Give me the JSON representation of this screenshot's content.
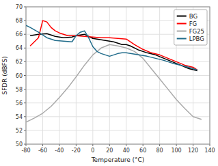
{
  "chart_data": {
    "type": "line",
    "xlabel": "Temperature (°C)",
    "ylabel": "SFDR (dBFS)",
    "xlim": [
      -80,
      140
    ],
    "ylim": [
      50,
      70
    ],
    "xticks": [
      -80,
      -60,
      -40,
      -20,
      0,
      20,
      40,
      60,
      80,
      100,
      120,
      140
    ],
    "yticks": [
      50,
      52,
      54,
      56,
      58,
      60,
      62,
      64,
      66,
      68,
      70
    ],
    "grid": true,
    "legend": "upper-right",
    "series": [
      {
        "name": "BG",
        "color": "#000000",
        "x": [
          -75,
          -65,
          -55,
          -45,
          -35,
          -25,
          -20,
          -15,
          -10,
          -5,
          0,
          5,
          10,
          15,
          20,
          25,
          30,
          35,
          40,
          45,
          55,
          65,
          75,
          85,
          95,
          105,
          115,
          125
        ],
        "values": [
          65.8,
          66.0,
          66.1,
          65.7,
          65.5,
          65.6,
          65.8,
          65.9,
          66.0,
          65.7,
          65.4,
          65.3,
          65.2,
          65.1,
          65.0,
          64.9,
          64.7,
          64.5,
          64.5,
          64.3,
          63.7,
          63.3,
          63.0,
          62.5,
          62.0,
          61.5,
          61.0,
          60.7
        ]
      },
      {
        "name": "FG",
        "color": "#ff0000",
        "x": [
          -75,
          -65,
          -60,
          -55,
          -50,
          -45,
          -40,
          -35,
          -30,
          -20,
          -10,
          0,
          10,
          20,
          30,
          40,
          50,
          60,
          70,
          80,
          90,
          100,
          110,
          120,
          125
        ],
        "values": [
          64.3,
          65.5,
          68.0,
          67.8,
          67.0,
          66.5,
          66.2,
          66.0,
          65.8,
          65.8,
          65.7,
          65.6,
          65.5,
          65.5,
          65.4,
          65.3,
          64.5,
          63.8,
          63.3,
          63.0,
          62.5,
          62.0,
          61.5,
          61.2,
          60.8
        ]
      },
      {
        "name": "FG25",
        "color": "#aaaaaa",
        "x": [
          -80,
          -70,
          -60,
          -50,
          -40,
          -30,
          -20,
          -10,
          0,
          10,
          20,
          30,
          40,
          50,
          60,
          70,
          80,
          90,
          100,
          110,
          120,
          130
        ],
        "values": [
          53.2,
          53.8,
          54.5,
          55.5,
          56.8,
          58.2,
          59.8,
          61.5,
          63.0,
          64.0,
          64.5,
          64.3,
          64.0,
          63.5,
          62.5,
          61.0,
          59.5,
          58.0,
          56.5,
          55.2,
          54.0,
          53.6
        ]
      },
      {
        "name": "LPBG",
        "color": "#1f6b8a",
        "x": [
          -80,
          -75,
          -65,
          -55,
          -45,
          -35,
          -25,
          -20,
          -15,
          -10,
          -5,
          0,
          5,
          10,
          15,
          20,
          25,
          30,
          35,
          40,
          45,
          55,
          65,
          75,
          85,
          95,
          105,
          115,
          125
        ],
        "values": [
          67.3,
          67.0,
          66.3,
          65.5,
          65.1,
          65.0,
          64.9,
          65.8,
          66.3,
          66.5,
          65.5,
          64.2,
          63.5,
          63.2,
          63.0,
          62.8,
          63.0,
          63.2,
          63.3,
          63.3,
          63.2,
          63.0,
          62.8,
          62.5,
          62.2,
          61.8,
          61.5,
          61.2,
          60.8
        ]
      }
    ]
  }
}
